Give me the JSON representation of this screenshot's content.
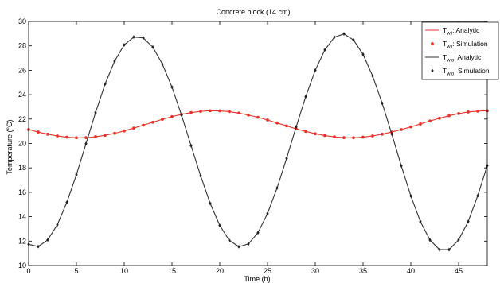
{
  "chart_data": {
    "type": "line",
    "title": "Concrete block (14 cm)",
    "xlabel": "Time (h)",
    "ylabel": "Temperature (°C)",
    "xlim": [
      0,
      48
    ],
    "ylim": [
      10,
      30
    ],
    "xticks": [
      0,
      5,
      10,
      15,
      20,
      25,
      30,
      35,
      40,
      45
    ],
    "yticks": [
      10,
      12,
      14,
      16,
      18,
      20,
      22,
      24,
      26,
      28,
      30
    ],
    "grid": false,
    "legend_position": "top-right",
    "series": [
      {
        "name_main": "T",
        "name_sub": "w,i",
        "name_rest": ": Analytic",
        "style": "line",
        "color": "#e8332a",
        "x": [
          0,
          1,
          2,
          3,
          4,
          5,
          6,
          7,
          8,
          9,
          10,
          11,
          12,
          13,
          14,
          15,
          16,
          17,
          18,
          19,
          20,
          21,
          22,
          23,
          24,
          25,
          26,
          27,
          28,
          29,
          30,
          31,
          32,
          33,
          34,
          35,
          36,
          37,
          38,
          39,
          40,
          41,
          42,
          43,
          44,
          45,
          46,
          47,
          48
        ],
        "values": [
          21.14,
          20.94,
          20.76,
          20.62,
          20.52,
          20.47,
          20.48,
          20.55,
          20.67,
          20.83,
          21.03,
          21.26,
          21.5,
          21.74,
          21.98,
          22.2,
          22.38,
          22.53,
          22.63,
          22.68,
          22.67,
          22.61,
          22.49,
          22.33,
          22.14,
          21.92,
          21.68,
          21.44,
          21.2,
          20.99,
          20.8,
          20.65,
          20.54,
          20.48,
          20.47,
          20.52,
          20.62,
          20.76,
          20.94,
          21.14,
          21.36,
          21.6,
          21.84,
          22.07,
          22.27,
          22.45,
          22.58,
          22.65,
          22.68
        ]
      },
      {
        "name_main": "T",
        "name_sub": "w,i",
        "name_rest": ": Simulation",
        "style": "marker",
        "marker": "dot",
        "color": "#e8332a",
        "x": [
          0,
          1,
          2,
          3,
          4,
          5,
          6,
          7,
          8,
          9,
          10,
          11,
          12,
          13,
          14,
          15,
          16,
          17,
          18,
          19,
          20,
          21,
          22,
          23,
          24,
          25,
          26,
          27,
          28,
          29,
          30,
          31,
          32,
          33,
          34,
          35,
          36,
          37,
          38,
          39,
          40,
          41,
          42,
          43,
          44,
          45,
          46,
          47,
          48
        ],
        "values": [
          21.14,
          20.94,
          20.76,
          20.62,
          20.52,
          20.47,
          20.48,
          20.55,
          20.67,
          20.83,
          21.03,
          21.26,
          21.5,
          21.74,
          21.98,
          22.2,
          22.38,
          22.53,
          22.63,
          22.68,
          22.67,
          22.61,
          22.49,
          22.33,
          22.14,
          21.92,
          21.68,
          21.44,
          21.2,
          20.99,
          20.8,
          20.65,
          20.54,
          20.48,
          20.47,
          20.52,
          20.62,
          20.76,
          20.94,
          21.14,
          21.36,
          21.6,
          21.84,
          22.07,
          22.27,
          22.45,
          22.58,
          22.65,
          22.68
        ]
      },
      {
        "name_main": "T",
        "name_sub": "w,o",
        "name_rest": ": Analytic",
        "style": "line",
        "color": "#333333",
        "x": [
          0,
          1,
          2,
          3,
          4,
          5,
          6,
          7,
          8,
          9,
          10,
          11,
          12,
          13,
          14,
          15,
          16,
          17,
          18,
          19,
          20,
          21,
          22,
          23,
          24,
          25,
          26,
          27,
          28,
          29,
          30,
          31,
          32,
          33,
          34,
          35,
          36,
          37,
          38,
          39,
          40,
          41,
          42,
          43,
          44,
          45,
          46,
          47,
          48
        ],
        "values": [
          11.74,
          11.55,
          12.1,
          13.34,
          15.18,
          17.44,
          19.98,
          22.53,
          24.87,
          26.75,
          28.08,
          28.72,
          28.65,
          27.89,
          26.5,
          24.62,
          22.32,
          19.82,
          17.35,
          15.09,
          13.28,
          12.06,
          11.54,
          11.77,
          12.69,
          14.26,
          16.35,
          18.79,
          21.36,
          23.84,
          26.0,
          27.67,
          28.71,
          28.98,
          28.48,
          27.3,
          25.53,
          23.3,
          20.78,
          18.17,
          15.7,
          13.6,
          12.09,
          11.3,
          11.3,
          12.1,
          13.6,
          15.72,
          18.19
        ]
      },
      {
        "name_main": "T",
        "name_sub": "w,o",
        "name_rest": ": Simulation",
        "style": "marker",
        "marker": "diamond",
        "color": "#222222",
        "x": [
          0,
          1,
          2,
          3,
          4,
          5,
          6,
          7,
          8,
          9,
          10,
          11,
          12,
          13,
          14,
          15,
          16,
          17,
          18,
          19,
          20,
          21,
          22,
          23,
          24,
          25,
          26,
          27,
          28,
          29,
          30,
          31,
          32,
          33,
          34,
          35,
          36,
          37,
          38,
          39,
          40,
          41,
          42,
          43,
          44,
          45,
          46,
          47,
          48
        ],
        "values": [
          11.74,
          11.55,
          12.1,
          13.34,
          15.18,
          17.44,
          19.98,
          22.53,
          24.87,
          26.75,
          28.08,
          28.72,
          28.65,
          27.89,
          26.5,
          24.62,
          22.32,
          19.82,
          17.35,
          15.09,
          13.28,
          12.06,
          11.54,
          11.77,
          12.69,
          14.26,
          16.35,
          18.79,
          21.36,
          23.84,
          26.0,
          27.67,
          28.71,
          28.98,
          28.48,
          27.3,
          25.53,
          23.3,
          20.78,
          18.17,
          15.7,
          13.6,
          12.09,
          11.3,
          11.3,
          12.1,
          13.6,
          15.72,
          18.19
        ]
      }
    ]
  }
}
